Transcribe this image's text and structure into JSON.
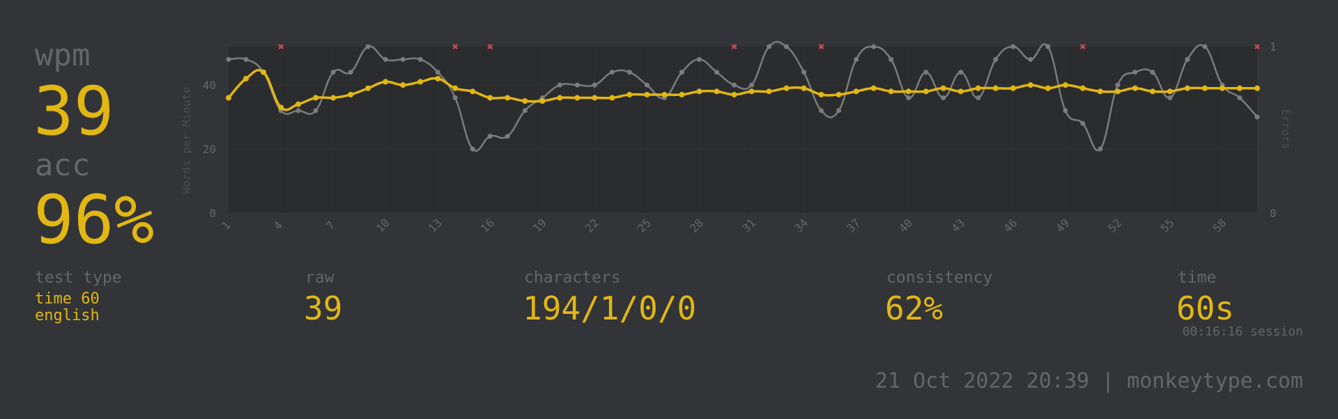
{
  "stats": {
    "wpm_label": "wpm",
    "wpm_value": "39",
    "acc_label": "acc",
    "acc_value": "96%"
  },
  "details": {
    "test_type_label": "test type",
    "test_type_line1": "time 60",
    "test_type_line2": "english",
    "raw_label": "raw",
    "raw_value": "39",
    "characters_label": "characters",
    "characters_value": "194/1/0/0",
    "consistency_label": "consistency",
    "consistency_value": "62%",
    "time_label": "time",
    "time_value": "60s",
    "session_time": "00:16:16 session"
  },
  "footer": "21 Oct 2022 20:39 | monkeytype.com",
  "colors": {
    "background": "#323437",
    "accent": "#e2b714",
    "subtext": "#646669",
    "error": "#ca4754",
    "raw_line": "#7b7c7e"
  },
  "chart_data": {
    "type": "line",
    "ylabel": "Words per Minute",
    "y2label": "Errors",
    "ylim": [
      0,
      52
    ],
    "y_ticks": [
      0,
      20,
      40
    ],
    "y2_ticks": [
      0,
      1
    ],
    "x_ticks": [
      "1",
      "4",
      "7",
      "10",
      "13",
      "16",
      "19",
      "22",
      "25",
      "28",
      "31",
      "34",
      "37",
      "40",
      "43",
      "46",
      "49",
      "52",
      "55",
      "58"
    ],
    "x": [
      1,
      2,
      3,
      4,
      5,
      6,
      7,
      8,
      9,
      10,
      11,
      12,
      13,
      14,
      15,
      16,
      17,
      18,
      19,
      20,
      21,
      22,
      23,
      24,
      25,
      26,
      27,
      28,
      29,
      30,
      31,
      32,
      33,
      34,
      35,
      36,
      37,
      38,
      39,
      40,
      41,
      42,
      43,
      44,
      45,
      46,
      47,
      48,
      49,
      50,
      51,
      52,
      53,
      54,
      55,
      56,
      57,
      58,
      59,
      60
    ],
    "series": [
      {
        "kind": "raw",
        "values": [
          48,
          48,
          44,
          32,
          32,
          32,
          44,
          44,
          52,
          48,
          48,
          48,
          44,
          36,
          20,
          24,
          24,
          32,
          36,
          40,
          40,
          40,
          44,
          44,
          40,
          36,
          44,
          48,
          44,
          40,
          40,
          52,
          52,
          44,
          32,
          32,
          48,
          52,
          48,
          36,
          44,
          36,
          44,
          36,
          48,
          52,
          48,
          52,
          32,
          28,
          20,
          40,
          44,
          44,
          36,
          48,
          52,
          40,
          36,
          30
        ]
      },
      {
        "kind": "wpm",
        "values": [
          36,
          42,
          44,
          33,
          34,
          36,
          36,
          37,
          39,
          41,
          40,
          41,
          42,
          39,
          38,
          36,
          36,
          35,
          35,
          36,
          36,
          36,
          36,
          37,
          37,
          37,
          37,
          38,
          38,
          37,
          38,
          38,
          39,
          39,
          37,
          37,
          38,
          39,
          38,
          38,
          38,
          39,
          38,
          39,
          39,
          39,
          40,
          39,
          40,
          39,
          38,
          38,
          39,
          38,
          38,
          39,
          39,
          39,
          39,
          39
        ]
      }
    ],
    "errors_x": [
      4,
      14,
      16,
      30,
      35,
      50,
      60
    ]
  }
}
